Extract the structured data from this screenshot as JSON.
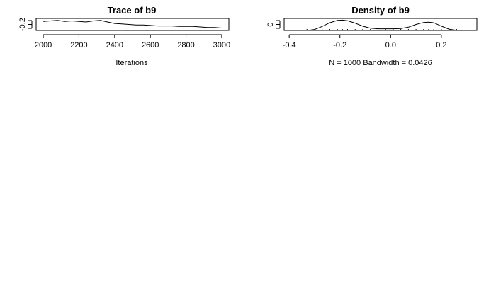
{
  "chart_data": [
    {
      "type": "line",
      "title": "Trace of b9",
      "xlabel": "Iterations",
      "ylabel": "",
      "xlim": [
        1960,
        3040
      ],
      "ylim": [
        -0.36,
        -0.12
      ],
      "x_ticks": [
        2000,
        2200,
        2400,
        2600,
        2800,
        3000
      ],
      "x_tick_labels": [
        "2000",
        "2200",
        "2400",
        "2600",
        "2800",
        "3000"
      ],
      "y_ticks": [
        -0.2
      ],
      "y_tick_labels": [
        "-0.2"
      ],
      "series": [
        {
          "x": [
            2000,
            2040,
            2080,
            2120,
            2160,
            2200,
            2240,
            2280,
            2320,
            2360,
            2400,
            2440,
            2480,
            2520,
            2560,
            2600,
            2640,
            2680,
            2720,
            2760,
            2800,
            2840,
            2880,
            2920,
            2960,
            3000
          ],
          "values": [
            -0.18,
            -0.17,
            -0.16,
            -0.18,
            -0.17,
            -0.18,
            -0.19,
            -0.17,
            -0.16,
            -0.19,
            -0.22,
            -0.23,
            -0.24,
            -0.25,
            -0.25,
            -0.26,
            -0.27,
            -0.27,
            -0.27,
            -0.28,
            -0.28,
            -0.28,
            -0.29,
            -0.3,
            -0.3,
            -0.31
          ]
        }
      ]
    },
    {
      "type": "line",
      "title": "Density of b9",
      "xlabel": "N = 1000   Bandwidth = 0.0426",
      "ylabel": "",
      "xlim": [
        -0.42,
        0.34
      ],
      "ylim": [
        0,
        3.6
      ],
      "x_ticks": [
        -0.4,
        -0.2,
        0.0,
        0.2
      ],
      "x_tick_labels": [
        "-0.4",
        "-0.2",
        "0.0",
        "0.2"
      ],
      "y_ticks": [
        0
      ],
      "y_tick_labels": [
        "0"
      ],
      "series": [
        {
          "x": [
            -0.33,
            -0.3,
            -0.27,
            -0.24,
            -0.21,
            -0.19,
            -0.17,
            -0.14,
            -0.11,
            -0.08,
            -0.05,
            -0.02,
            0.01,
            0.04,
            0.07,
            0.1,
            0.13,
            0.15,
            0.17,
            0.2,
            0.23,
            0.26
          ],
          "values": [
            0.0,
            0.3,
            1.2,
            2.3,
            3.0,
            3.1,
            2.9,
            2.2,
            1.3,
            0.7,
            0.5,
            0.5,
            0.5,
            0.6,
            1.0,
            1.8,
            2.4,
            2.5,
            2.3,
            1.3,
            0.4,
            0.05
          ]
        }
      ]
    }
  ]
}
